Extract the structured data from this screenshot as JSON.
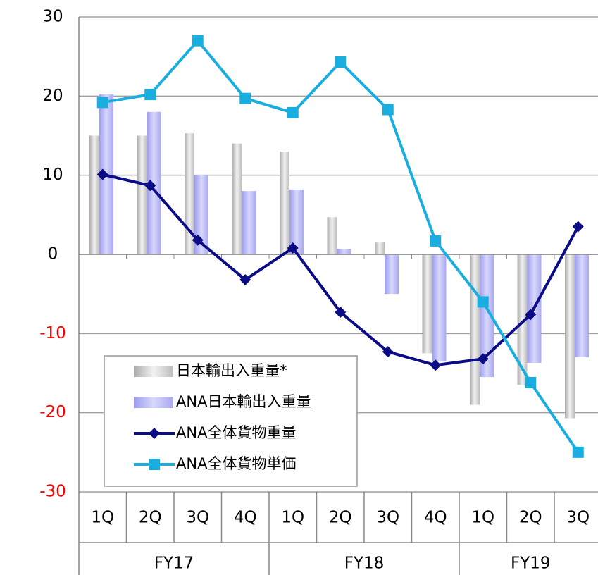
{
  "chart_data": {
    "type": "bar_line",
    "categories": [
      [
        "1Q",
        "FY17"
      ],
      [
        "2Q",
        "FY17"
      ],
      [
        "3Q",
        "FY17"
      ],
      [
        "4Q",
        "FY17"
      ],
      [
        "1Q",
        "FY18"
      ],
      [
        "2Q",
        "FY18"
      ],
      [
        "3Q",
        "FY18"
      ],
      [
        "4Q",
        "FY18"
      ],
      [
        "1Q",
        "FY19"
      ],
      [
        "2Q",
        "FY19"
      ],
      [
        "3Q",
        "FY19"
      ]
    ],
    "series": [
      {
        "name": "日本輸出入重量*",
        "kind": "bar",
        "color": "#c8c8c8",
        "values": [
          15,
          15,
          15.3,
          14,
          13,
          4.7,
          1.5,
          -12.5,
          -19,
          -16.5,
          -20.7
        ]
      },
      {
        "name": "ANA日本輸出入重量",
        "kind": "bar",
        "color": "#b3b3f5",
        "values": [
          20.2,
          18,
          10,
          8,
          8.2,
          0.7,
          -5,
          -13.5,
          -15.5,
          -13.7,
          -13
        ]
      },
      {
        "name": "ANA全体貨物重量",
        "kind": "line",
        "marker": "diamond",
        "color": "#0c0c86",
        "values": [
          10.1,
          8.7,
          1.8,
          -3.2,
          0.8,
          -7.3,
          -12.3,
          -14,
          -13.2,
          -7.6,
          3.5
        ]
      },
      {
        "name": "ANA全体貨物単価",
        "kind": "line",
        "marker": "square",
        "color": "#1aaee0",
        "values": [
          19.2,
          20.2,
          27,
          19.7,
          17.9,
          24.3,
          18.3,
          1.7,
          -6,
          -16.2,
          -25
        ]
      }
    ],
    "ylim": [
      -30,
      30
    ],
    "yticks": [
      -30,
      -20,
      -10,
      0,
      10,
      20,
      30
    ],
    "negative_tick_color": "#ff0000",
    "grid": true,
    "legend": "lower left"
  }
}
